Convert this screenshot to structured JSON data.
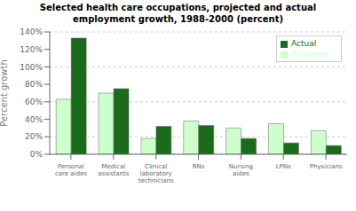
{
  "chart_data": {
    "type": "bar",
    "title": "Selected health care occupations, projected and actual\nemployment growth, 1988-2000 (percent)",
    "categories": [
      "Personal\ncare aides",
      "Medical\nassistants",
      "Clinical\nlaboratory\ntechnicians",
      "RNs",
      "Nursing\naides",
      "LPNs",
      "Physicians"
    ],
    "series": [
      {
        "name": "Projected",
        "color": "#ccffcc",
        "values": [
          63,
          70,
          18,
          38,
          30,
          35,
          27
        ]
      },
      {
        "name": "Actual",
        "color": "#1a6b1a",
        "values": [
          133,
          75,
          32,
          33,
          18,
          13,
          10
        ]
      }
    ],
    "ylabel": "Percent growth",
    "ylim": [
      0,
      140
    ],
    "yticks": [
      {
        "value": 0,
        "label": "0%"
      },
      {
        "value": 20,
        "label": "20%"
      },
      {
        "value": 40,
        "label": "40%"
      },
      {
        "value": 60,
        "label": "60%"
      },
      {
        "value": 80,
        "label": "80%"
      },
      {
        "value": 100,
        "label": "100%"
      },
      {
        "value": 120,
        "label": "120%"
      },
      {
        "value": 140,
        "label": "140%"
      }
    ],
    "grid": true,
    "legend": "upper right"
  }
}
